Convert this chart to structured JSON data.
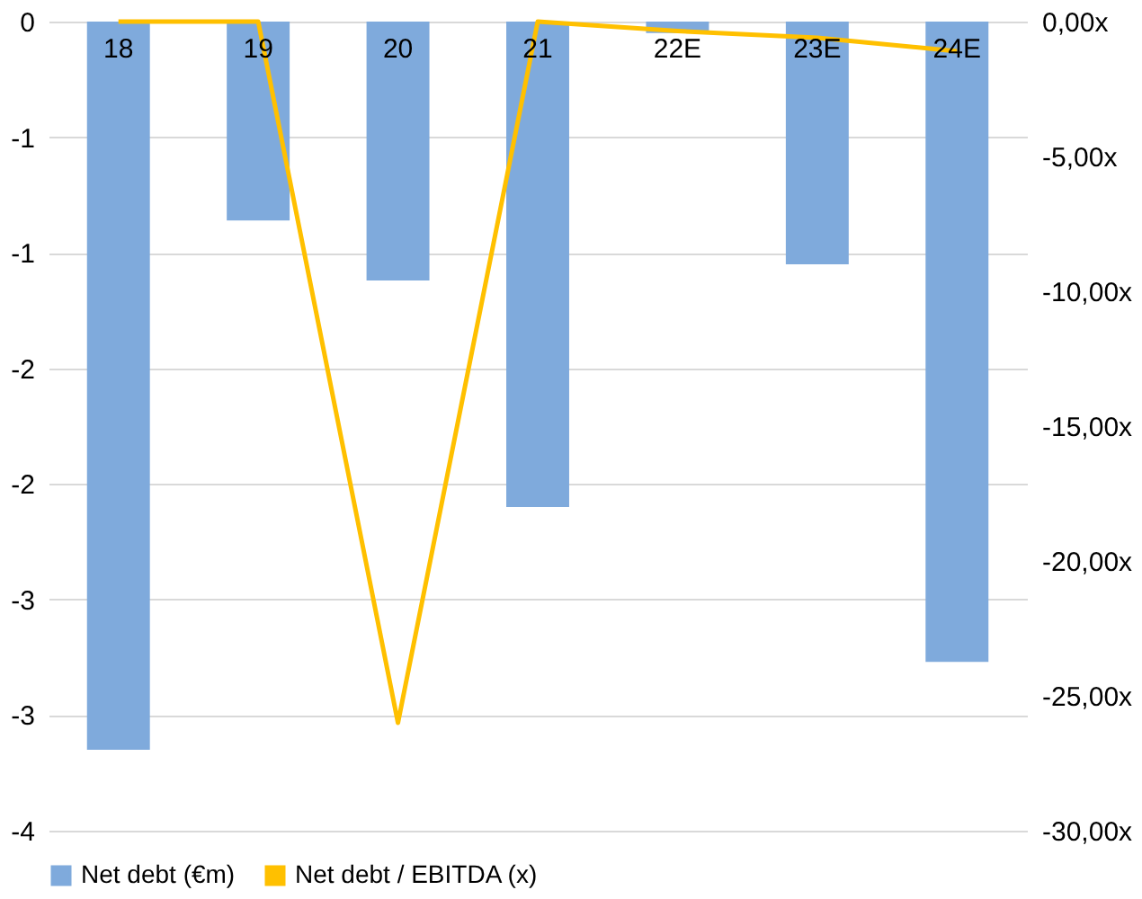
{
  "chart_data": {
    "type": "bar",
    "categories": [
      "18",
      "19",
      "20",
      "21",
      "22E",
      "23E",
      "24E"
    ],
    "series": [
      {
        "name": "Net debt  (€m)",
        "color": "#7faadc",
        "values": [
          -3.15,
          -0.86,
          -1.12,
          -2.1,
          -0.05,
          -1.05,
          -2.77
        ]
      },
      {
        "name": "Net debt / EBITDA (x)",
        "type": "line",
        "axis": "y2",
        "color": "#ffc000",
        "values": [
          0,
          0,
          -26,
          0,
          -0.35,
          -0.6,
          -1.1
        ]
      }
    ],
    "ylim": [
      -3.5,
      0
    ],
    "yticks": [
      {
        "value": 0,
        "label": "0"
      },
      {
        "value": -0.5,
        "label": "-1"
      },
      {
        "value": -1,
        "label": "-1"
      },
      {
        "value": -1.5,
        "label": "-2"
      },
      {
        "value": -2,
        "label": "-2"
      },
      {
        "value": -2.5,
        "label": "-3"
      },
      {
        "value": -3,
        "label": "-3"
      },
      {
        "value": -3.5,
        "label": "-4"
      }
    ],
    "y2lim": [
      -30,
      0
    ],
    "y2ticks": [
      {
        "value": 0,
        "label": "0,00x"
      },
      {
        "value": -5,
        "label": "-5,00x"
      },
      {
        "value": -10,
        "label": "-10,00x"
      },
      {
        "value": -15,
        "label": "-15,00x"
      },
      {
        "value": -20,
        "label": "-20,00x"
      },
      {
        "value": -25,
        "label": "-25,00x"
      },
      {
        "value": -30,
        "label": "-30,00x"
      }
    ],
    "grid": "y",
    "legend": "bottom"
  }
}
